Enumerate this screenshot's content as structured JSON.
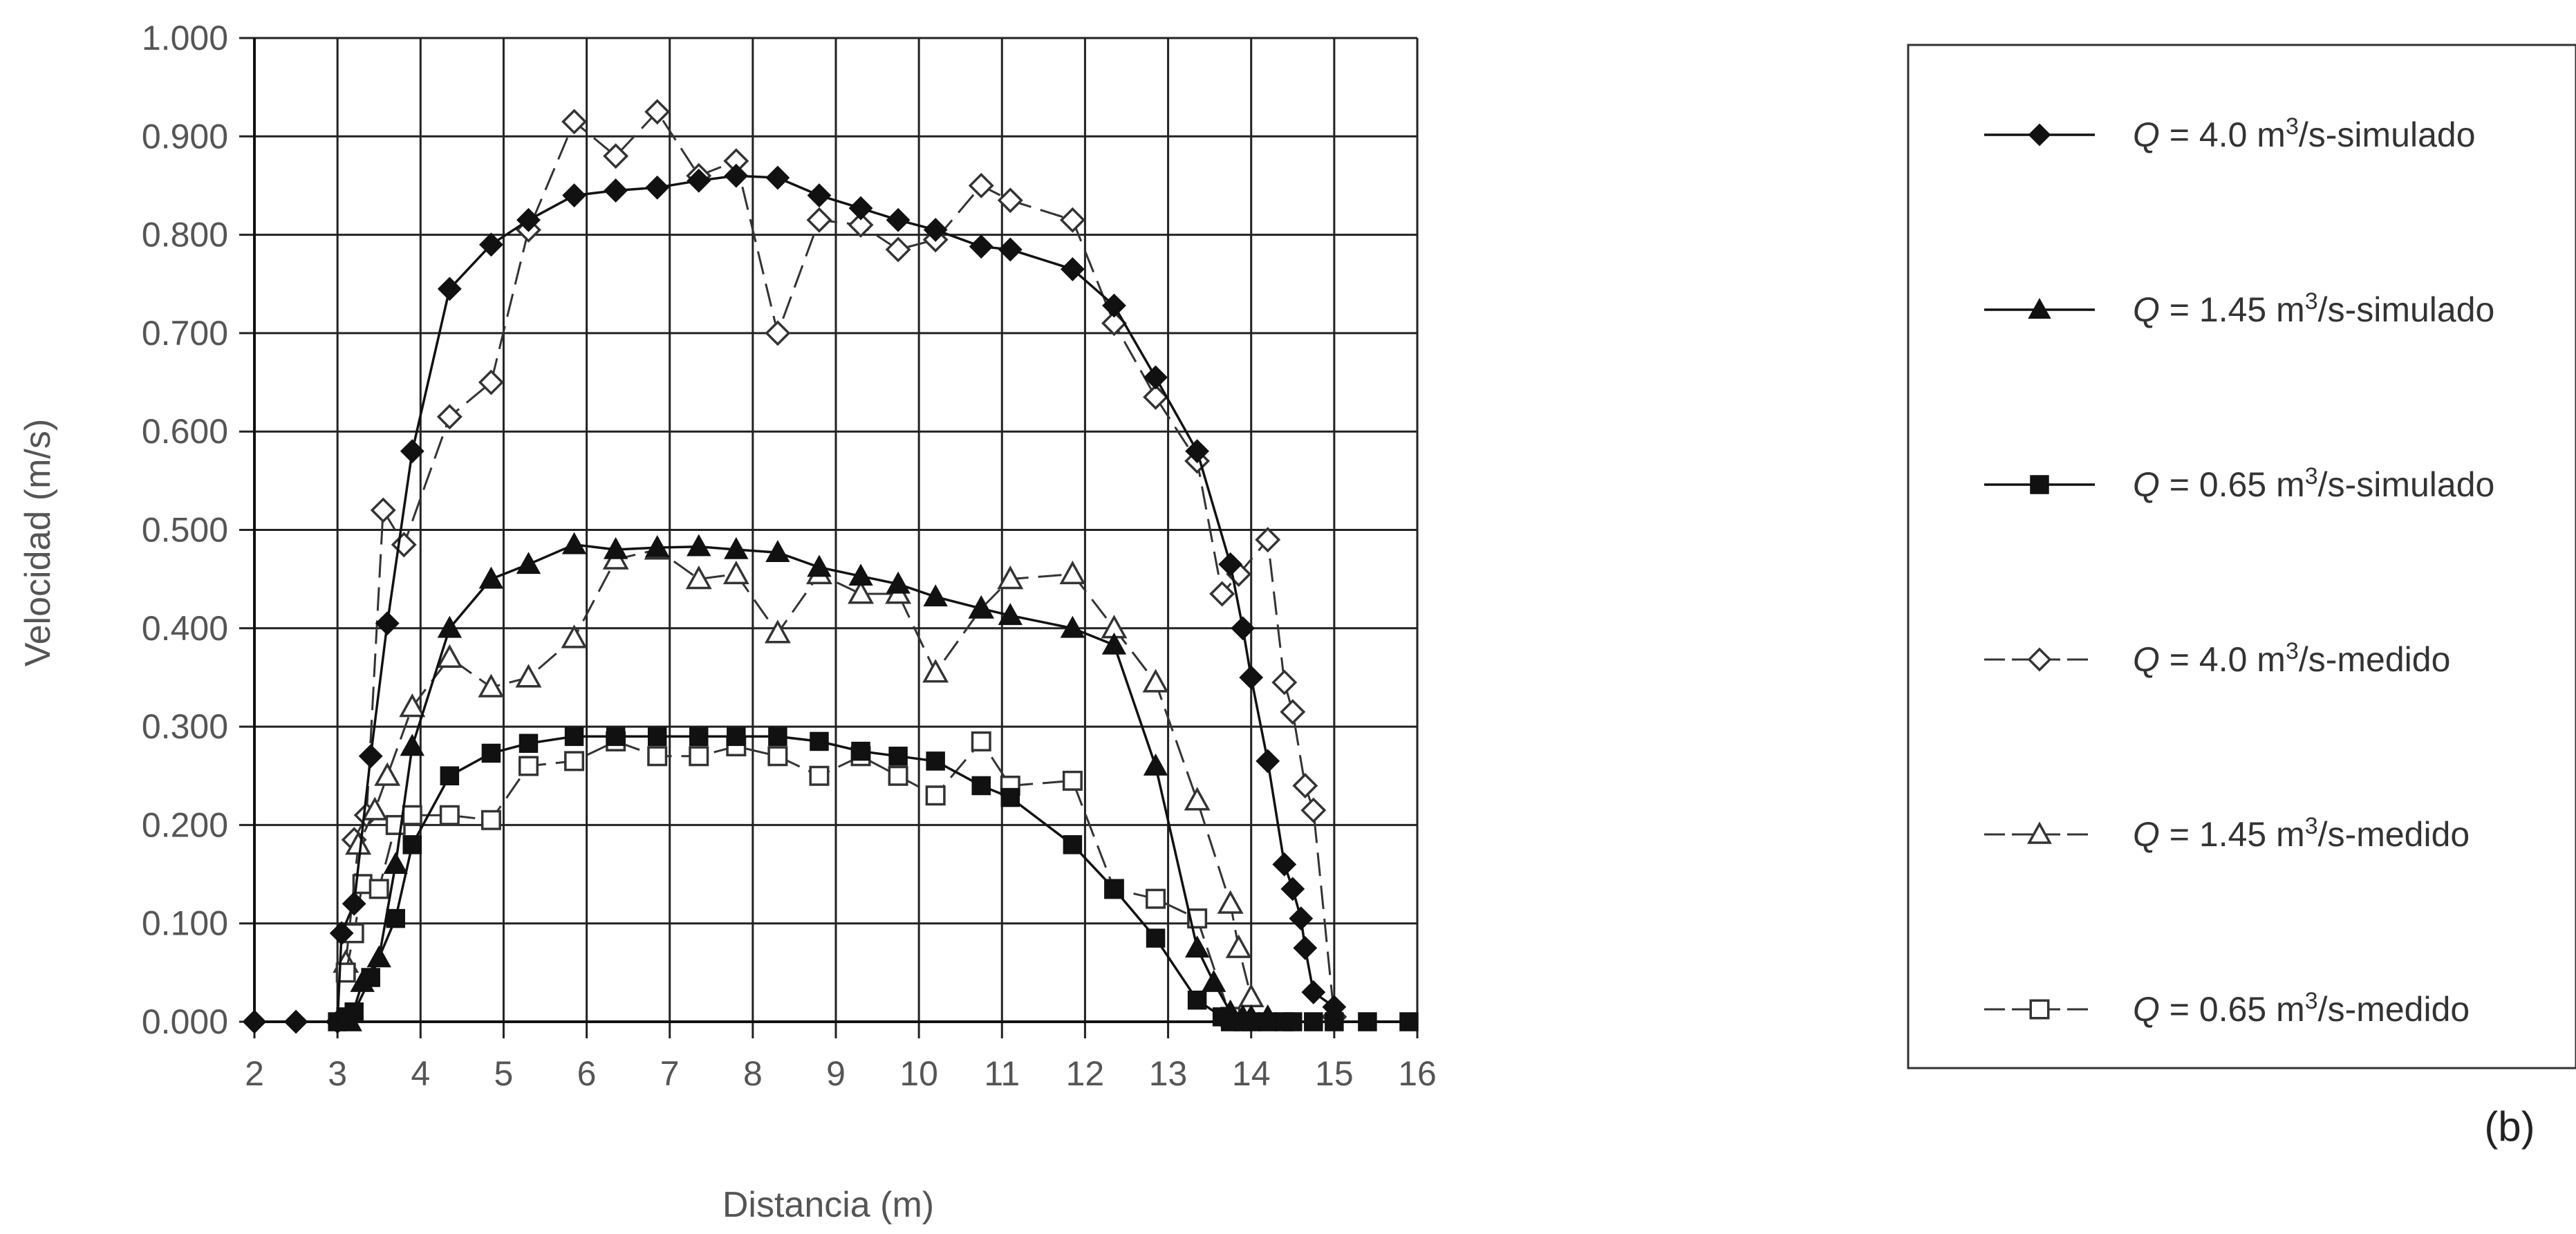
{
  "panel_label": "(b)",
  "chart_data": {
    "type": "line",
    "title": "",
    "xlabel": "Distancia (m)",
    "ylabel": "Velocidad (m/s)",
    "xlim": [
      2,
      16
    ],
    "ylim": [
      0,
      1
    ],
    "xticks": [
      2,
      3,
      4,
      5,
      6,
      7,
      8,
      9,
      10,
      11,
      12,
      13,
      14,
      15,
      16
    ],
    "yticks": [
      0,
      0.1,
      0.2,
      0.3,
      0.4,
      0.5,
      0.6,
      0.7,
      0.8,
      0.9,
      1.0
    ],
    "ytick_labels": [
      "0.000",
      "0.100",
      "0.200",
      "0.300",
      "0.400",
      "0.500",
      "0.600",
      "0.700",
      "0.800",
      "0.900",
      "1.000"
    ],
    "grid": true,
    "legend_position": "right",
    "series": [
      {
        "legend": {
          "q": "Q",
          "value": " = 4.0 m",
          "sup": "3",
          "rest": "/s-simulado"
        },
        "marker": "diamond-filled",
        "dash": "solid",
        "color": "#111111",
        "points": [
          [
            2.0,
            0.0
          ],
          [
            2.5,
            0.0
          ],
          [
            3.0,
            0.0
          ],
          [
            3.05,
            0.09
          ],
          [
            3.2,
            0.12
          ],
          [
            3.4,
            0.27
          ],
          [
            3.6,
            0.405
          ],
          [
            3.9,
            0.58
          ],
          [
            4.35,
            0.745
          ],
          [
            4.85,
            0.79
          ],
          [
            5.3,
            0.815
          ],
          [
            5.85,
            0.84
          ],
          [
            6.35,
            0.845
          ],
          [
            6.85,
            0.848
          ],
          [
            7.35,
            0.855
          ],
          [
            7.8,
            0.86
          ],
          [
            8.3,
            0.858
          ],
          [
            8.8,
            0.84
          ],
          [
            9.3,
            0.827
          ],
          [
            9.75,
            0.815
          ],
          [
            10.2,
            0.805
          ],
          [
            10.75,
            0.788
          ],
          [
            11.1,
            0.785
          ],
          [
            11.85,
            0.765
          ],
          [
            12.35,
            0.728
          ],
          [
            12.85,
            0.655
          ],
          [
            13.35,
            0.58
          ],
          [
            13.75,
            0.465
          ],
          [
            13.9,
            0.4
          ],
          [
            14.0,
            0.35
          ],
          [
            14.2,
            0.265
          ],
          [
            14.4,
            0.16
          ],
          [
            14.5,
            0.135
          ],
          [
            14.6,
            0.105
          ],
          [
            14.65,
            0.075
          ],
          [
            14.75,
            0.03
          ],
          [
            15.0,
            0.015
          ]
        ]
      },
      {
        "legend": {
          "q": "Q",
          "value": " = 1.45 m",
          "sup": "3",
          "rest": "/s-simulado"
        },
        "marker": "triangle-filled",
        "dash": "solid",
        "color": "#111111",
        "points": [
          [
            3.15,
            0.0
          ],
          [
            3.3,
            0.04
          ],
          [
            3.5,
            0.065
          ],
          [
            3.7,
            0.16
          ],
          [
            3.9,
            0.28
          ],
          [
            4.35,
            0.4
          ],
          [
            4.85,
            0.45
          ],
          [
            5.3,
            0.465
          ],
          [
            5.85,
            0.485
          ],
          [
            6.35,
            0.48
          ],
          [
            6.85,
            0.482
          ],
          [
            7.35,
            0.483
          ],
          [
            7.8,
            0.48
          ],
          [
            8.3,
            0.477
          ],
          [
            8.8,
            0.462
          ],
          [
            9.3,
            0.453
          ],
          [
            9.75,
            0.445
          ],
          [
            10.2,
            0.432
          ],
          [
            10.75,
            0.42
          ],
          [
            11.1,
            0.413
          ],
          [
            11.85,
            0.4
          ],
          [
            12.35,
            0.383
          ],
          [
            12.85,
            0.26
          ],
          [
            13.35,
            0.075
          ],
          [
            13.55,
            0.04
          ],
          [
            13.75,
            0.01
          ],
          [
            13.9,
            0.005
          ],
          [
            14.0,
            0.005
          ],
          [
            14.2,
            0.005
          ]
        ]
      },
      {
        "legend": {
          "q": "Q",
          "value": " = 0.65 m",
          "sup": "3",
          "rest": "/s-simulado"
        },
        "marker": "square-filled",
        "dash": "solid",
        "color": "#111111",
        "points": [
          [
            3.0,
            0.0
          ],
          [
            3.1,
            0.005
          ],
          [
            3.2,
            0.01
          ],
          [
            3.4,
            0.045
          ],
          [
            3.7,
            0.105
          ],
          [
            3.9,
            0.18
          ],
          [
            4.35,
            0.25
          ],
          [
            4.85,
            0.273
          ],
          [
            5.3,
            0.283
          ],
          [
            5.85,
            0.29
          ],
          [
            6.35,
            0.29
          ],
          [
            6.85,
            0.29
          ],
          [
            7.35,
            0.29
          ],
          [
            7.8,
            0.29
          ],
          [
            8.3,
            0.29
          ],
          [
            8.8,
            0.285
          ],
          [
            9.3,
            0.275
          ],
          [
            9.75,
            0.27
          ],
          [
            10.2,
            0.265
          ],
          [
            10.75,
            0.24
          ],
          [
            11.1,
            0.228
          ],
          [
            11.85,
            0.18
          ],
          [
            12.35,
            0.135
          ],
          [
            12.85,
            0.085
          ],
          [
            13.35,
            0.022
          ],
          [
            13.65,
            0.005
          ],
          [
            13.75,
            0.0
          ],
          [
            13.9,
            0.0
          ],
          [
            14.0,
            0.0
          ],
          [
            14.2,
            0.0
          ],
          [
            14.4,
            0.0
          ],
          [
            14.5,
            0.0
          ],
          [
            14.75,
            0.0
          ],
          [
            15.0,
            0.0
          ],
          [
            15.4,
            0.0
          ],
          [
            15.9,
            0.0
          ]
        ]
      },
      {
        "legend": {
          "q": "Q",
          "value": " = 4.0 m",
          "sup": "3",
          "rest": "/s-medido"
        },
        "marker": "diamond-open",
        "dash": "long",
        "color": "#333333",
        "points": [
          [
            3.2,
            0.185
          ],
          [
            3.35,
            0.21
          ],
          [
            3.55,
            0.52
          ],
          [
            3.8,
            0.485
          ],
          [
            4.35,
            0.615
          ],
          [
            4.85,
            0.65
          ],
          [
            5.3,
            0.805
          ],
          [
            5.85,
            0.915
          ],
          [
            6.35,
            0.88
          ],
          [
            6.85,
            0.925
          ],
          [
            7.35,
            0.86
          ],
          [
            7.8,
            0.875
          ],
          [
            8.3,
            0.7
          ],
          [
            8.8,
            0.815
          ],
          [
            9.3,
            0.81
          ],
          [
            9.75,
            0.785
          ],
          [
            10.2,
            0.795
          ],
          [
            10.75,
            0.85
          ],
          [
            11.1,
            0.835
          ],
          [
            11.85,
            0.815
          ],
          [
            12.35,
            0.71
          ],
          [
            12.85,
            0.635
          ],
          [
            13.35,
            0.57
          ],
          [
            13.65,
            0.435
          ],
          [
            13.85,
            0.455
          ],
          [
            14.2,
            0.49
          ],
          [
            14.4,
            0.345
          ],
          [
            14.5,
            0.315
          ],
          [
            14.65,
            0.24
          ],
          [
            14.75,
            0.215
          ],
          [
            15.0,
            0.005
          ]
        ]
      },
      {
        "legend": {
          "q": "Q",
          "value": " = 1.45 m",
          "sup": "3",
          "rest": "/s-medido"
        },
        "marker": "triangle-open",
        "dash": "long",
        "color": "#333333",
        "points": [
          [
            3.1,
            0.06
          ],
          [
            3.25,
            0.18
          ],
          [
            3.45,
            0.215
          ],
          [
            3.6,
            0.25
          ],
          [
            3.9,
            0.32
          ],
          [
            4.35,
            0.37
          ],
          [
            4.85,
            0.34
          ],
          [
            5.3,
            0.35
          ],
          [
            5.85,
            0.39
          ],
          [
            6.35,
            0.47
          ],
          [
            6.85,
            0.48
          ],
          [
            7.35,
            0.45
          ],
          [
            7.8,
            0.455
          ],
          [
            8.3,
            0.395
          ],
          [
            8.8,
            0.455
          ],
          [
            9.3,
            0.435
          ],
          [
            9.75,
            0.435
          ],
          [
            10.2,
            0.355
          ],
          [
            10.75,
            0.42
          ],
          [
            11.1,
            0.45
          ],
          [
            11.85,
            0.455
          ],
          [
            12.35,
            0.4
          ],
          [
            12.85,
            0.345
          ],
          [
            13.35,
            0.225
          ],
          [
            13.75,
            0.12
          ],
          [
            13.85,
            0.075
          ],
          [
            14.0,
            0.025
          ]
        ]
      },
      {
        "legend": {
          "q": "Q",
          "value": " = 0.65 m",
          "sup": "3",
          "rest": "/s-medido"
        },
        "marker": "square-open",
        "dash": "long",
        "color": "#333333",
        "points": [
          [
            3.1,
            0.05
          ],
          [
            3.2,
            0.09
          ],
          [
            3.3,
            0.14
          ],
          [
            3.5,
            0.135
          ],
          [
            3.7,
            0.2
          ],
          [
            3.9,
            0.21
          ],
          [
            4.35,
            0.21
          ],
          [
            4.85,
            0.205
          ],
          [
            5.3,
            0.26
          ],
          [
            5.85,
            0.265
          ],
          [
            6.35,
            0.285
          ],
          [
            6.85,
            0.27
          ],
          [
            7.35,
            0.27
          ],
          [
            7.8,
            0.28
          ],
          [
            8.3,
            0.27
          ],
          [
            8.8,
            0.25
          ],
          [
            9.3,
            0.27
          ],
          [
            9.75,
            0.25
          ],
          [
            10.2,
            0.23
          ],
          [
            10.75,
            0.285
          ],
          [
            11.1,
            0.24
          ],
          [
            11.85,
            0.245
          ],
          [
            12.35,
            0.135
          ],
          [
            12.85,
            0.125
          ],
          [
            13.35,
            0.105
          ],
          [
            13.75,
            0.005
          ]
        ]
      }
    ]
  }
}
